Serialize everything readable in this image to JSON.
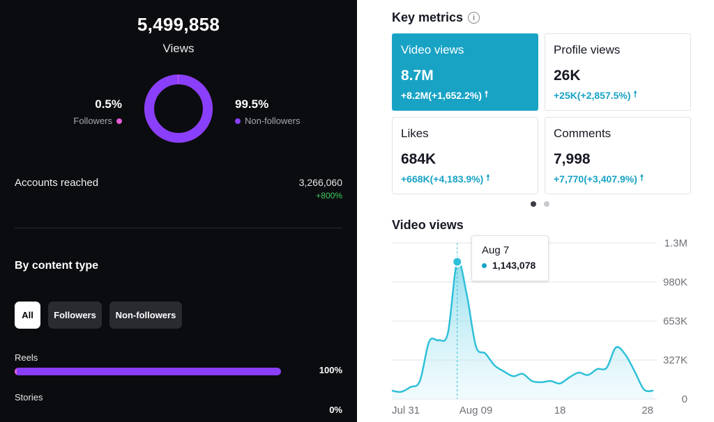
{
  "audience": {
    "total_views": "5,499,858",
    "total_label": "Views",
    "followers": {
      "pct_text": "0.5%",
      "label": "Followers",
      "share": 0.005
    },
    "non_followers": {
      "pct_text": "99.5%",
      "label": "Non-followers",
      "share": 0.995
    },
    "accounts_reached": {
      "label": "Accounts reached",
      "value": "3,266,060",
      "change": "+800%"
    },
    "content_type": {
      "heading": "By content type",
      "filters": [
        "All",
        "Followers",
        "Non-followers"
      ],
      "rows": [
        {
          "label": "Reels",
          "pct_text": "100%",
          "share": 1.0
        },
        {
          "label": "Stories",
          "pct_text": "0%",
          "share": 0.0
        }
      ]
    }
  },
  "key_metrics": {
    "title": "Key metrics",
    "info_icon": "info-circle-icon",
    "cards": [
      {
        "label": "Video views",
        "value": "8.7M",
        "change": "+8.2M(+1,652.2%)"
      },
      {
        "label": "Profile views",
        "value": "26K",
        "change": "+25K(+2,857.5%)"
      },
      {
        "label": "Likes",
        "value": "684K",
        "change": "+668K(+4,183.9%)"
      },
      {
        "label": "Comments",
        "value": "7,998",
        "change": "+7,770(+3,407.9%)"
      }
    ],
    "arrow_icon": "arrow-up-icon"
  },
  "colors": {
    "accent": "#18a3c5",
    "purple": "#8a3ffc",
    "pink": "#e35bd6",
    "positive": "#3ecf5b",
    "dark_bg": "#0b0c10"
  },
  "chart_data": {
    "type": "area",
    "title": "Video views",
    "x_ticks": [
      "Jul 31",
      "Aug 09",
      "18",
      "28"
    ],
    "y_ticks": [
      "1.3M",
      "980K",
      "653K",
      "327K",
      "0"
    ],
    "ylim": [
      0,
      1300000
    ],
    "grid": true,
    "series": [
      {
        "x": [
          "Jul 31",
          "Aug 1",
          "Aug 2",
          "Aug 3",
          "Aug 4",
          "Aug 5",
          "Aug 6",
          "Aug 7",
          "Aug 8",
          "Aug 9",
          "Aug 10",
          "Aug 11",
          "Aug 12",
          "Aug 13",
          "Aug 14",
          "Aug 15",
          "Aug 16",
          "Aug 17",
          "Aug 18",
          "Aug 19",
          "Aug 20",
          "Aug 21",
          "Aug 22",
          "Aug 23",
          "Aug 24",
          "Aug 25",
          "Aug 26",
          "Aug 27",
          "Aug 28"
        ],
        "values": [
          70000,
          60000,
          100000,
          150000,
          480000,
          490000,
          550000,
          1143078,
          880000,
          440000,
          380000,
          280000,
          230000,
          190000,
          210000,
          150000,
          140000,
          150000,
          130000,
          180000,
          220000,
          200000,
          250000,
          260000,
          430000,
          370000,
          230000,
          80000,
          70000
        ]
      }
    ],
    "tooltip": {
      "date": "Aug 7",
      "value": "1,143,078"
    }
  }
}
